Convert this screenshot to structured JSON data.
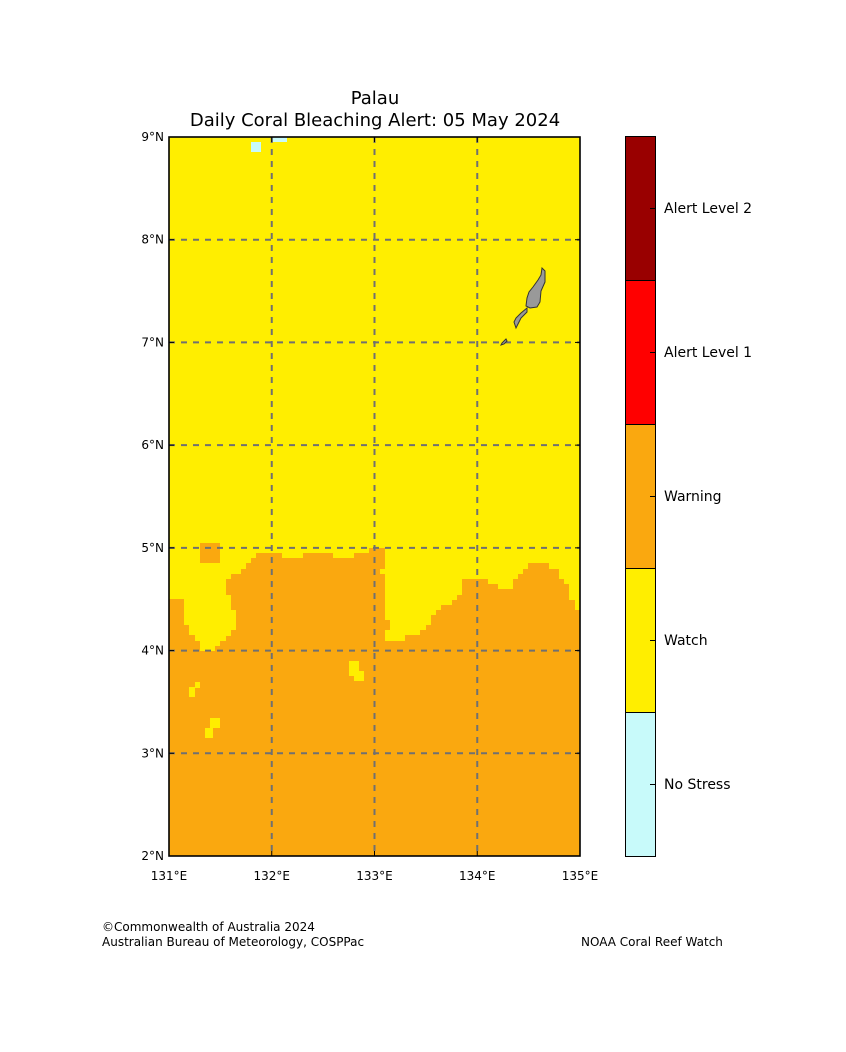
{
  "title_line1": "Palau",
  "title_line2": "Daily Coral Bleaching Alert: 05 May 2024",
  "map": {
    "lon_range": [
      131,
      135
    ],
    "lat_range": [
      2,
      9
    ],
    "lat_ticks": [
      "9°N",
      "8°N",
      "7°N",
      "6°N",
      "5°N",
      "4°N",
      "3°N",
      "2°N"
    ],
    "lon_ticks": [
      "131°E",
      "132°E",
      "133°E",
      "134°E",
      "135°E"
    ],
    "gridlines": "dashed",
    "land_color": "#999999",
    "north_region": "Watch",
    "south_region": "Warning",
    "small_patches": [
      "No Stress",
      "Watch",
      "Warning"
    ]
  },
  "legend": {
    "levels": [
      {
        "label": "Alert Level 2",
        "color": "#990000"
      },
      {
        "label": "Alert Level 1",
        "color": "#ff0000"
      },
      {
        "label": "Warning",
        "color": "#faa80f"
      },
      {
        "label": "Watch",
        "color": "#ffee00"
      },
      {
        "label": "No Stress",
        "color": "#c8fafa"
      }
    ]
  },
  "footer": {
    "copyright": "©Commonwealth of Australia 2024",
    "agency": "Australian Bureau of Meteorology, COSPPac",
    "partner": "NOAA Coral Reef Watch"
  }
}
